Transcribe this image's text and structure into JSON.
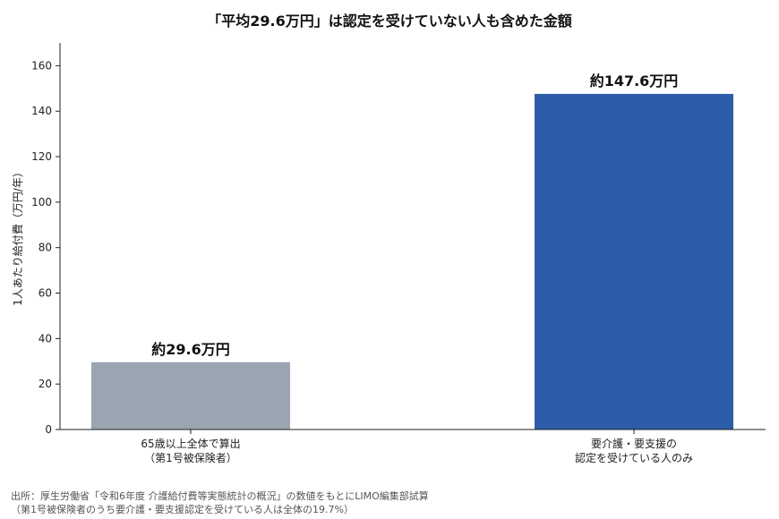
{
  "chart_data": {
    "type": "bar",
    "title": "「平均29.6万円」は認定を受けていない人も含めた金額",
    "ylabel": "1人あたり給付費（万円/年）",
    "ylim": [
      0,
      170
    ],
    "yticks": [
      0,
      20,
      40,
      60,
      80,
      100,
      120,
      140,
      160
    ],
    "categories": [
      [
        "65歳以上全体で算出",
        "（第1号被保険者）"
      ],
      [
        "要介護・要支援の",
        "認定を受けている人のみ"
      ]
    ],
    "values": [
      29.6,
      147.6
    ],
    "data_labels": [
      "約29.6万円",
      "約147.6万円"
    ],
    "colors": [
      "#9aa5b1",
      "#2d5da8"
    ],
    "grid": false,
    "legend": "none"
  },
  "source": {
    "line1": "出所：厚生労働省「令和6年度 介護給付費等実態統計の概況」の数値をもとにLIMO編集部試算",
    "line2": "（第1号被保険者のうち要介護・要支援認定を受けている人は全体の19.7%）"
  }
}
